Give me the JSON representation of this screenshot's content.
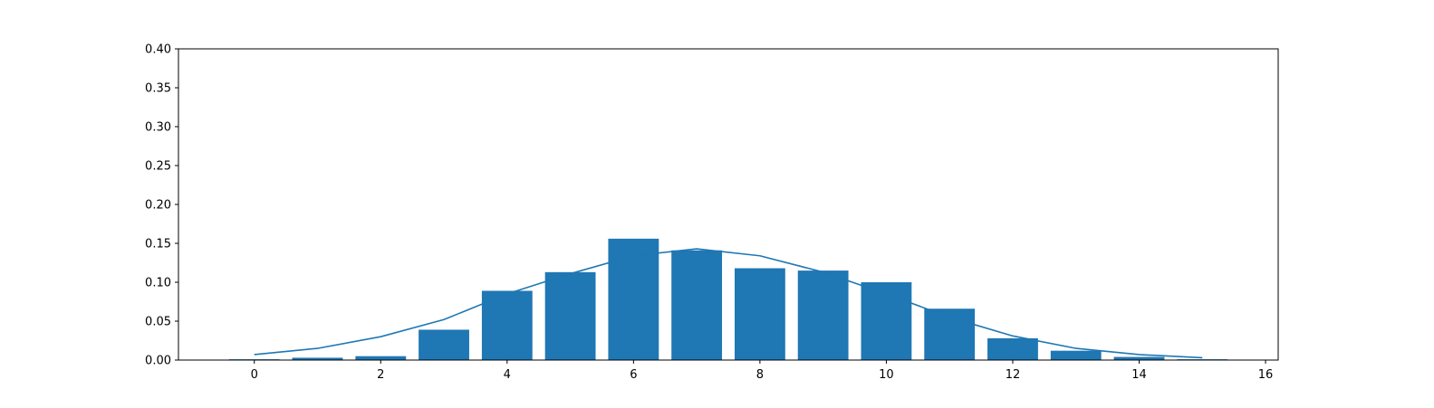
{
  "chart_data": {
    "type": "bar",
    "title": "",
    "xlabel": "",
    "ylabel": "",
    "xlim": [
      -1.2,
      16.2
    ],
    "ylim": [
      0,
      0.4
    ],
    "grid": false,
    "colors": {
      "bar": "#1f77b4",
      "line": "#1f77b4"
    },
    "x_ticks": [
      0,
      2,
      4,
      6,
      8,
      10,
      12,
      14,
      16
    ],
    "x_tick_labels": [
      "0",
      "2",
      "4",
      "6",
      "8",
      "10",
      "12",
      "14",
      "16"
    ],
    "y_ticks": [
      0,
      0.05,
      0.1,
      0.15,
      0.2,
      0.25,
      0.3,
      0.35,
      0.4
    ],
    "y_tick_labels": [
      "0.00",
      "0.05",
      "0.10",
      "0.15",
      "0.20",
      "0.25",
      "0.30",
      "0.35",
      "0.40"
    ],
    "bars": {
      "x": [
        0,
        1,
        2,
        3,
        4,
        5,
        6,
        7,
        8,
        9,
        10,
        11,
        12,
        13,
        14,
        15
      ],
      "values": [
        0.001,
        0.003,
        0.005,
        0.039,
        0.089,
        0.113,
        0.156,
        0.141,
        0.118,
        0.115,
        0.1,
        0.066,
        0.028,
        0.012,
        0.004,
        0.001
      ]
    },
    "line": {
      "x": [
        0,
        1,
        2,
        3,
        4,
        5,
        6,
        7,
        8,
        9,
        10,
        11,
        12,
        13,
        14,
        15
      ],
      "values": [
        0.007,
        0.015,
        0.03,
        0.052,
        0.085,
        0.111,
        0.134,
        0.143,
        0.134,
        0.113,
        0.085,
        0.055,
        0.031,
        0.015,
        0.007,
        0.003
      ]
    }
  }
}
